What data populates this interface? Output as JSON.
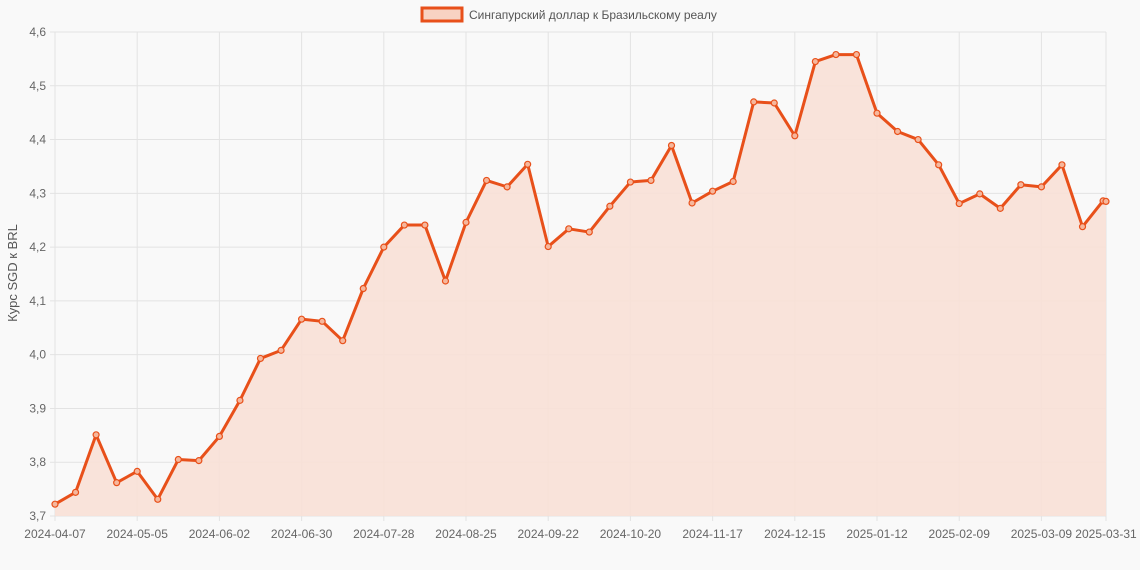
{
  "chart_data": {
    "type": "line",
    "legend_position": "top-center",
    "grid": true,
    "xlabel": "",
    "ylabel": "Курс SGD к BRL",
    "ylim": [
      3.7,
      4.6
    ],
    "yticks": [
      "3,7",
      "3,8",
      "3,9",
      "4,0",
      "4,1",
      "4,2",
      "4,3",
      "4,4",
      "4,5",
      "4,6"
    ],
    "xtick_labels": [
      "2024-04-07",
      "2024-05-05",
      "2024-06-02",
      "2024-06-30",
      "2024-07-28",
      "2024-08-25",
      "2024-09-22",
      "2024-10-20",
      "2024-11-17",
      "2024-12-15",
      "2025-01-12",
      "2025-02-09",
      "2025-03-09",
      "2025-03-31"
    ],
    "colors": {
      "line": "#e8501a",
      "fill": "#f8e0d6",
      "grid": "#e3e3e3"
    },
    "series": [
      {
        "name": "Сингапурский доллар к Бразильскому реалу",
        "x": [
          "2024-04-07",
          "2024-04-14",
          "2024-04-21",
          "2024-04-28",
          "2024-05-05",
          "2024-05-12",
          "2024-05-19",
          "2024-05-26",
          "2024-06-02",
          "2024-06-09",
          "2024-06-16",
          "2024-06-23",
          "2024-06-30",
          "2024-07-07",
          "2024-07-14",
          "2024-07-21",
          "2024-07-28",
          "2024-08-04",
          "2024-08-11",
          "2024-08-18",
          "2024-08-25",
          "2024-09-01",
          "2024-09-08",
          "2024-09-15",
          "2024-09-22",
          "2024-09-29",
          "2024-10-06",
          "2024-10-13",
          "2024-10-20",
          "2024-10-27",
          "2024-11-03",
          "2024-11-10",
          "2024-11-17",
          "2024-11-24",
          "2024-12-01",
          "2024-12-08",
          "2024-12-15",
          "2024-12-22",
          "2024-12-29",
          "2025-01-05",
          "2025-01-12",
          "2025-01-19",
          "2025-01-26",
          "2025-02-02",
          "2025-02-09",
          "2025-02-16",
          "2025-02-23",
          "2025-03-02",
          "2025-03-09",
          "2025-03-16",
          "2025-03-23",
          "2025-03-30",
          "2025-03-31"
        ],
        "values": [
          3.722,
          3.744,
          3.851,
          3.762,
          3.783,
          3.731,
          3.805,
          3.803,
          3.848,
          3.915,
          3.993,
          4.008,
          4.066,
          4.062,
          4.026,
          4.123,
          4.2,
          4.241,
          4.241,
          4.137,
          4.246,
          4.324,
          4.312,
          4.354,
          4.201,
          4.234,
          4.228,
          4.276,
          4.321,
          4.324,
          4.389,
          4.282,
          4.304,
          4.322,
          4.47,
          4.468,
          4.407,
          4.545,
          4.558,
          4.558,
          4.449,
          4.415,
          4.4,
          4.353,
          4.281,
          4.299,
          4.272,
          4.316,
          4.312,
          4.353,
          4.238,
          4.286,
          4.285
        ]
      }
    ]
  }
}
